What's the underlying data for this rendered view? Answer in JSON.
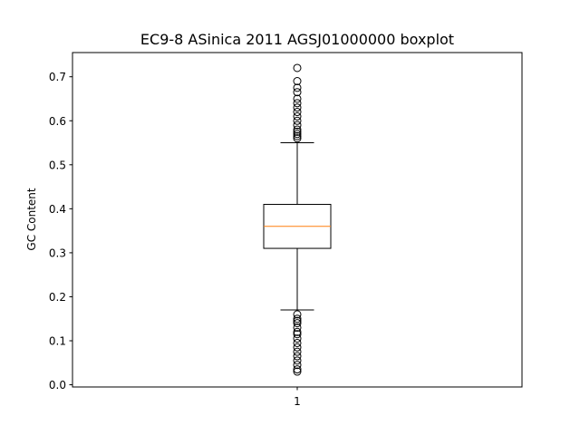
{
  "chart_data": {
    "type": "boxplot",
    "title": "EC9-8 ASinica 2011 AGSJ01000000 boxplot",
    "xlabel": "",
    "ylabel": "GC Content",
    "categories": [
      "1"
    ],
    "ylim": [
      -0.005,
      0.755
    ],
    "y_ticks": [
      0.0,
      0.1,
      0.2,
      0.3,
      0.4,
      0.5,
      0.6,
      0.7
    ],
    "y_tick_labels": [
      "0.0",
      "0.1",
      "0.2",
      "0.3",
      "0.4",
      "0.5",
      "0.6",
      "0.7"
    ],
    "grid": false,
    "boxes": [
      {
        "label": "1",
        "whisker_low": 0.17,
        "q1": 0.31,
        "median": 0.36,
        "q3": 0.41,
        "whisker_high": 0.55,
        "outliers_high": [
          0.56,
          0.565,
          0.57,
          0.575,
          0.58,
          0.59,
          0.6,
          0.61,
          0.62,
          0.63,
          0.64,
          0.65,
          0.665,
          0.675,
          0.69,
          0.72
        ],
        "outliers_low": [
          0.03,
          0.035,
          0.045,
          0.055,
          0.065,
          0.075,
          0.085,
          0.095,
          0.105,
          0.115,
          0.12,
          0.13,
          0.14,
          0.145,
          0.15,
          0.16
        ]
      }
    ],
    "colors": {
      "box": "#000000",
      "median": "#ff7f0e",
      "outlier": "#000000",
      "background": "#ffffff"
    }
  }
}
